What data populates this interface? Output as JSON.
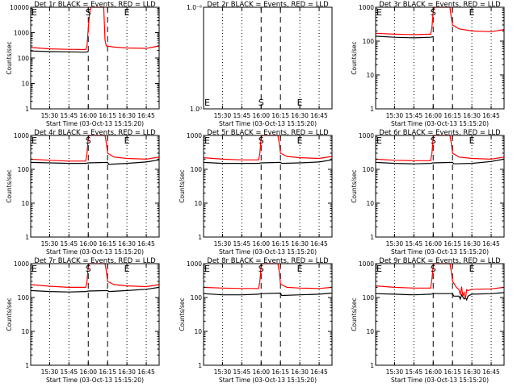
{
  "figure": {
    "background": "#ffffff",
    "axis_color": "#000000",
    "events_color": "#000000",
    "lld_color": "#ff0000"
  },
  "chart_data": [
    {
      "type": "line",
      "detector": "1r",
      "title": "Det 1r BLACK = Events, RED = LLD",
      "xlabel": "Start Time (03-Oct-13 15:15:20)",
      "ylabel": "Counts/sec",
      "y_scale": "log",
      "ylim": [
        1,
        10000
      ],
      "y_ticks": [
        1,
        10,
        100,
        1000,
        10000
      ],
      "y_tick_labels": [
        "1",
        "10",
        "100",
        "1000",
        "10000"
      ],
      "x_ticks": [
        "15:30",
        "15:45",
        "16:00",
        "16:15",
        "16:30",
        "16:45"
      ],
      "xlim": [
        "15:15:20",
        "16:55"
      ],
      "dotted_vlines": [
        "15:30",
        "15:45",
        "16:30",
        "16:45"
      ],
      "dashed_vlines": [
        "16:00",
        "16:15"
      ],
      "markers": [
        {
          "label": "E",
          "time": "15:16"
        },
        {
          "label": "S",
          "time": "16:00"
        },
        {
          "label": "E",
          "time": "16:30"
        }
      ],
      "series": [
        {
          "name": "Events",
          "color": "#000000",
          "x": [
            "15:15:20",
            "15:30",
            "15:45",
            "15:58",
            "15:59",
            "16:00"
          ],
          "values": [
            190,
            180,
            175,
            170,
            175,
            180
          ]
        },
        {
          "name": "LLD",
          "color": "#ff0000",
          "x": [
            "15:15:20",
            "15:30",
            "15:45",
            "15:58",
            "15:59",
            "16:00",
            "16:01",
            "16:02",
            "16:03",
            "16:10",
            "16:12",
            "16:13",
            "16:14",
            "16:20",
            "16:30",
            "16:45",
            "16:55"
          ],
          "values": [
            260,
            230,
            220,
            215,
            300,
            1500,
            6000,
            10000,
            10000,
            10000,
            10000,
            500,
            300,
            270,
            250,
            240,
            300
          ]
        }
      ]
    },
    {
      "type": "line",
      "detector": "2r",
      "title": "Det 2r BLACK = Events, RED = LLD",
      "xlabel": "Start Time (03-Oct-13 15:15:20)",
      "ylabel": "",
      "y_scale": "log",
      "ylim": [
        1,
        1.000001
      ],
      "y_ticks": [
        1,
        1.000001
      ],
      "y_tick_labels": [
        "1.0⁰",
        "1.0⁻⁶"
      ],
      "x_ticks": [
        "15:30",
        "15:45",
        "16:00",
        "16:15",
        "16:30",
        "16:45"
      ],
      "xlim": [
        "15:15:20",
        "16:55"
      ],
      "dotted_vlines": [
        "15:30",
        "15:45",
        "16:30",
        "16:45"
      ],
      "dashed_vlines": [
        "16:00",
        "16:15"
      ],
      "markers": [
        {
          "label": "E",
          "time": "15:16"
        },
        {
          "label": "S",
          "time": "16:00"
        },
        {
          "label": "E",
          "time": "16:30"
        }
      ],
      "series": []
    },
    {
      "type": "line",
      "detector": "3r",
      "title": "Det 3r BLACK = Events, RED = LLD",
      "xlabel": "Start Time (03-Oct-13 15:15:20)",
      "ylabel": "Counts/sec",
      "y_scale": "log",
      "ylim": [
        1,
        1000
      ],
      "y_ticks": [
        1,
        10,
        100,
        1000
      ],
      "y_tick_labels": [
        "1",
        "10",
        "100",
        "1000"
      ],
      "x_ticks": [
        "15:30",
        "15:45",
        "16:00",
        "16:15",
        "16:30",
        "16:45"
      ],
      "xlim": [
        "15:15:20",
        "16:55"
      ],
      "dotted_vlines": [
        "15:30",
        "15:45",
        "16:30",
        "16:45"
      ],
      "dashed_vlines": [
        "16:00",
        "16:15"
      ],
      "markers": [
        {
          "label": "E",
          "time": "15:16"
        },
        {
          "label": "S",
          "time": "16:00"
        },
        {
          "label": "E",
          "time": "16:30"
        }
      ],
      "series": [
        {
          "name": "Events",
          "color": "#000000",
          "x": [
            "15:15:20",
            "15:30",
            "15:45",
            "15:58",
            "16:00"
          ],
          "values": [
            140,
            130,
            125,
            130,
            135
          ]
        },
        {
          "name": "LLD",
          "color": "#ff0000",
          "x": [
            "15:15:20",
            "15:30",
            "15:45",
            "15:58",
            "15:59",
            "16:00",
            "16:01",
            "16:02",
            "16:13",
            "16:14",
            "16:15",
            "16:20",
            "16:30",
            "16:45",
            "16:55"
          ],
          "values": [
            170,
            160,
            155,
            160,
            250,
            800,
            1000,
            1000,
            1000,
            500,
            300,
            230,
            200,
            190,
            220
          ]
        }
      ]
    },
    {
      "type": "line",
      "detector": "4r",
      "title": "Det 4r BLACK = Events, RED = LLD",
      "xlabel": "Start Time (03-Oct-13 15:15:20)",
      "ylabel": "Counts/sec",
      "y_scale": "log",
      "ylim": [
        1,
        1000
      ],
      "y_ticks": [
        1,
        10,
        100,
        1000
      ],
      "y_tick_labels": [
        "1",
        "10",
        "100",
        "1000"
      ],
      "x_ticks": [
        "15:30",
        "15:45",
        "16:00",
        "16:15",
        "16:30",
        "16:45"
      ],
      "xlim": [
        "15:15:20",
        "16:55"
      ],
      "dotted_vlines": [
        "15:30",
        "15:45",
        "16:30",
        "16:45"
      ],
      "dashed_vlines": [
        "16:00",
        "16:15"
      ],
      "markers": [
        {
          "label": "E",
          "time": "15:16"
        },
        {
          "label": "S",
          "time": "16:00"
        },
        {
          "label": "E",
          "time": "16:30"
        }
      ],
      "series": [
        {
          "name": "Events",
          "color": "#000000",
          "x": [
            "15:15:20",
            "15:30",
            "15:45",
            "15:58",
            "16:00",
            "16:15",
            "16:16",
            "16:30",
            "16:45",
            "16:55"
          ],
          "values": [
            160,
            155,
            150,
            150,
            155,
            160,
            140,
            150,
            165,
            190
          ]
        },
        {
          "name": "LLD",
          "color": "#ff0000",
          "x": [
            "15:15:20",
            "15:30",
            "15:45",
            "15:58",
            "15:59",
            "16:00",
            "16:01",
            "16:13",
            "16:14",
            "16:15",
            "16:20",
            "16:30",
            "16:45",
            "16:55"
          ],
          "values": [
            200,
            185,
            175,
            175,
            300,
            900,
            1000,
            1000,
            600,
            300,
            230,
            210,
            200,
            230
          ]
        }
      ]
    },
    {
      "type": "line",
      "detector": "5r",
      "title": "Det 5r BLACK = Events, RED = LLD",
      "xlabel": "Start Time (03-Oct-13 15:15:20)",
      "ylabel": "Counts/sec",
      "y_scale": "log",
      "ylim": [
        1,
        1000
      ],
      "y_ticks": [
        1,
        10,
        100,
        1000
      ],
      "y_tick_labels": [
        "1",
        "10",
        "100",
        "1000"
      ],
      "x_ticks": [
        "15:30",
        "15:45",
        "16:00",
        "16:15",
        "16:30",
        "16:45"
      ],
      "xlim": [
        "15:15:20",
        "16:55"
      ],
      "dotted_vlines": [
        "15:30",
        "15:45",
        "16:30",
        "16:45"
      ],
      "dashed_vlines": [
        "16:00",
        "16:15"
      ],
      "markers": [
        {
          "label": "E",
          "time": "15:16"
        },
        {
          "label": "S",
          "time": "16:00"
        },
        {
          "label": "E",
          "time": "16:30"
        }
      ],
      "series": [
        {
          "name": "Events",
          "color": "#000000",
          "x": [
            "15:15:20",
            "15:30",
            "15:45",
            "15:58",
            "16:00",
            "16:15",
            "16:16",
            "16:30",
            "16:45",
            "16:55"
          ],
          "values": [
            160,
            150,
            150,
            150,
            155,
            160,
            150,
            155,
            165,
            190
          ]
        },
        {
          "name": "LLD",
          "color": "#ff0000",
          "x": [
            "15:15:20",
            "15:30",
            "15:45",
            "15:58",
            "15:59",
            "16:00",
            "16:01",
            "16:13",
            "16:14",
            "16:15",
            "16:20",
            "16:30",
            "16:45",
            "16:55"
          ],
          "values": [
            220,
            200,
            190,
            190,
            300,
            900,
            1000,
            1000,
            600,
            300,
            240,
            220,
            210,
            240
          ]
        }
      ]
    },
    {
      "type": "line",
      "detector": "6r",
      "title": "Det 6r BLACK = Events, RED = LLD",
      "xlabel": "Start Time (03-Oct-13 15:15:20)",
      "ylabel": "Counts/sec",
      "y_scale": "log",
      "ylim": [
        1,
        1000
      ],
      "y_ticks": [
        1,
        10,
        100,
        1000
      ],
      "y_tick_labels": [
        "1",
        "10",
        "100",
        "1000"
      ],
      "x_ticks": [
        "15:30",
        "15:45",
        "16:00",
        "16:15",
        "16:30",
        "16:45"
      ],
      "xlim": [
        "15:15:20",
        "16:55"
      ],
      "dotted_vlines": [
        "15:30",
        "15:45",
        "16:30",
        "16:45"
      ],
      "dashed_vlines": [
        "16:00",
        "16:15"
      ],
      "markers": [
        {
          "label": "E",
          "time": "15:16"
        },
        {
          "label": "S",
          "time": "16:00"
        },
        {
          "label": "E",
          "time": "16:30"
        }
      ],
      "series": [
        {
          "name": "Events",
          "color": "#000000",
          "x": [
            "15:15:20",
            "15:30",
            "15:45",
            "15:58",
            "16:00",
            "16:15",
            "16:16",
            "16:30",
            "16:45",
            "16:55"
          ],
          "values": [
            160,
            150,
            145,
            150,
            155,
            160,
            145,
            150,
            170,
            200
          ]
        },
        {
          "name": "LLD",
          "color": "#ff0000",
          "x": [
            "15:15:20",
            "15:30",
            "15:45",
            "15:58",
            "15:59",
            "16:00",
            "16:01",
            "16:13",
            "16:14",
            "16:15",
            "16:20",
            "16:30",
            "16:45",
            "16:55"
          ],
          "values": [
            200,
            185,
            180,
            180,
            300,
            900,
            1000,
            1000,
            600,
            300,
            230,
            210,
            200,
            230
          ]
        }
      ]
    },
    {
      "type": "line",
      "detector": "7r",
      "title": "Det 7r BLACK = Events, RED = LLD",
      "xlabel": "Start Time (03-Oct-13 15:15:20)",
      "ylabel": "Counts/sec",
      "y_scale": "log",
      "ylim": [
        1,
        1000
      ],
      "y_ticks": [
        1,
        10,
        100,
        1000
      ],
      "y_tick_labels": [
        "1",
        "10",
        "100",
        "1000"
      ],
      "x_ticks": [
        "15:30",
        "15:45",
        "16:00",
        "16:15",
        "16:30",
        "16:45"
      ],
      "xlim": [
        "15:15:20",
        "16:55"
      ],
      "dotted_vlines": [
        "15:30",
        "15:45",
        "16:30",
        "16:45"
      ],
      "dashed_vlines": [
        "16:00",
        "16:15"
      ],
      "markers": [
        {
          "label": "E",
          "time": "15:16"
        },
        {
          "label": "S",
          "time": "16:00"
        },
        {
          "label": "E",
          "time": "16:30"
        }
      ],
      "series": [
        {
          "name": "Events",
          "color": "#000000",
          "x": [
            "15:15:20",
            "15:30",
            "15:45",
            "15:58",
            "16:00",
            "16:15",
            "16:16",
            "16:30",
            "16:45",
            "16:55"
          ],
          "values": [
            160,
            150,
            145,
            150,
            155,
            160,
            150,
            160,
            175,
            200
          ]
        },
        {
          "name": "LLD",
          "color": "#ff0000",
          "x": [
            "15:15:20",
            "15:30",
            "15:45",
            "15:58",
            "15:59",
            "16:00",
            "16:01",
            "16:13",
            "16:14",
            "16:15",
            "16:20",
            "16:30",
            "16:45",
            "16:55"
          ],
          "values": [
            240,
            215,
            200,
            200,
            300,
            900,
            1000,
            1000,
            600,
            300,
            240,
            220,
            210,
            240
          ]
        }
      ]
    },
    {
      "type": "line",
      "detector": "8r",
      "title": "Det 8r BLACK = Events, RED = LLD",
      "xlabel": "Start Time (03-Oct-13 15:15:20)",
      "ylabel": "Counts/sec",
      "y_scale": "log",
      "ylim": [
        1,
        1000
      ],
      "y_ticks": [
        1,
        10,
        100,
        1000
      ],
      "y_tick_labels": [
        "1",
        "10",
        "100",
        "1000"
      ],
      "x_ticks": [
        "15:30",
        "15:45",
        "16:00",
        "16:15",
        "16:30",
        "16:45"
      ],
      "xlim": [
        "15:15:20",
        "16:55"
      ],
      "dotted_vlines": [
        "15:30",
        "15:45",
        "16:30",
        "16:45"
      ],
      "dashed_vlines": [
        "16:00",
        "16:15"
      ],
      "markers": [
        {
          "label": "E",
          "time": "15:16"
        },
        {
          "label": "S",
          "time": "16:00"
        },
        {
          "label": "E",
          "time": "16:30"
        }
      ],
      "series": [
        {
          "name": "Events",
          "color": "#000000",
          "x": [
            "15:15:20",
            "15:30",
            "15:45",
            "15:58",
            "16:00",
            "16:15",
            "16:16",
            "16:30",
            "16:45",
            "16:55"
          ],
          "values": [
            130,
            120,
            120,
            125,
            130,
            135,
            115,
            120,
            125,
            135
          ]
        },
        {
          "name": "LLD",
          "color": "#ff0000",
          "x": [
            "15:15:20",
            "15:30",
            "15:45",
            "15:58",
            "15:59",
            "16:00",
            "16:01",
            "16:13",
            "16:14",
            "16:15",
            "16:20",
            "16:30",
            "16:45",
            "16:55"
          ],
          "values": [
            200,
            190,
            185,
            185,
            300,
            900,
            1000,
            1000,
            600,
            250,
            200,
            190,
            185,
            200
          ]
        }
      ]
    },
    {
      "type": "line",
      "detector": "9r",
      "title": "Det 9r BLACK = Events, RED = LLD",
      "xlabel": "Start Time (03-Oct-13 15:15:20)",
      "ylabel": "Counts/sec",
      "y_scale": "log",
      "ylim": [
        1,
        1000
      ],
      "y_ticks": [
        1,
        10,
        100,
        1000
      ],
      "y_tick_labels": [
        "1",
        "10",
        "100",
        "1000"
      ],
      "x_ticks": [
        "15:30",
        "15:45",
        "16:00",
        "16:15",
        "16:30",
        "16:45"
      ],
      "xlim": [
        "15:15:20",
        "16:55"
      ],
      "dotted_vlines": [
        "15:30",
        "15:45",
        "16:30",
        "16:45"
      ],
      "dashed_vlines": [
        "16:00",
        "16:15"
      ],
      "markers": [
        {
          "label": "E",
          "time": "15:16"
        },
        {
          "label": "S",
          "time": "16:00"
        },
        {
          "label": "E",
          "time": "16:30"
        }
      ],
      "series": [
        {
          "name": "Events",
          "color": "#000000",
          "x": [
            "15:15:20",
            "15:30",
            "15:45",
            "15:58",
            "16:00",
            "16:15",
            "16:16",
            "16:20",
            "16:21",
            "16:22",
            "16:24",
            "16:25",
            "16:26",
            "16:27",
            "16:30",
            "16:45",
            "16:55"
          ],
          "values": [
            130,
            125,
            120,
            125,
            130,
            130,
            110,
            110,
            90,
            120,
            90,
            100,
            85,
            110,
            125,
            130,
            140
          ]
        },
        {
          "name": "LLD",
          "color": "#ff0000",
          "x": [
            "15:15:20",
            "15:30",
            "15:45",
            "15:58",
            "15:59",
            "16:00",
            "16:01",
            "16:13",
            "16:14",
            "16:15",
            "16:18",
            "16:20",
            "16:21",
            "16:22",
            "16:23",
            "16:24",
            "16:25",
            "16:26",
            "16:27",
            "16:30",
            "16:45",
            "16:55"
          ],
          "values": [
            220,
            200,
            190,
            190,
            350,
            900,
            1000,
            1000,
            600,
            300,
            200,
            170,
            120,
            210,
            110,
            140,
            90,
            170,
            160,
            175,
            180,
            200
          ]
        }
      ]
    }
  ]
}
